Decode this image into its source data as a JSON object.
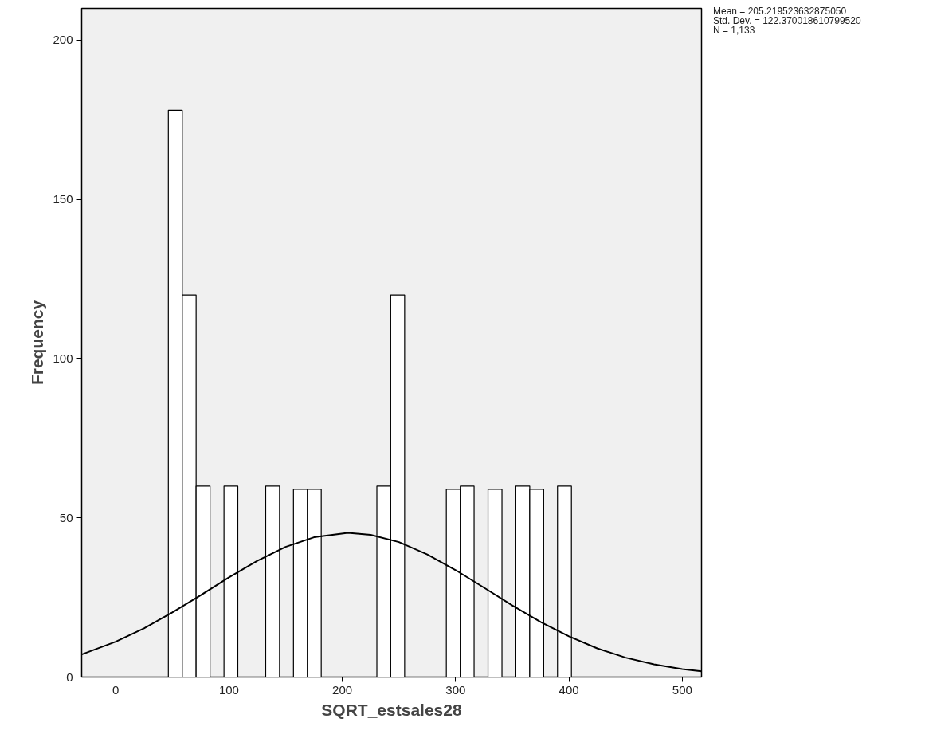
{
  "chart_data": {
    "type": "histogram",
    "xlabel": "SQRT_estsales28",
    "ylabel": "Frequency",
    "bins": [
      46.5,
      58.8,
      71.0,
      83.3,
      95.6,
      107.8,
      120.1,
      132.4,
      144.6,
      156.9,
      169.2,
      181.4,
      193.7,
      205.9,
      218.2,
      230.5,
      242.7,
      255.0,
      267.3,
      279.5,
      291.8,
      304.1,
      316.3,
      328.6,
      340.9,
      353.1,
      365.4,
      377.7,
      389.9,
      402.2
    ],
    "values": [
      178,
      120,
      60,
      0,
      60,
      0,
      0,
      60,
      0,
      59,
      59,
      0,
      0,
      0,
      0,
      60,
      120,
      0,
      0,
      0,
      59,
      60,
      0,
      59,
      0,
      60,
      59,
      0,
      60
    ],
    "color": "#ffffff",
    "series": [
      {
        "type": "line",
        "color": "#000000",
        "x": [
          -30,
          0,
          25,
          50,
          75,
          100,
          125,
          150,
          175,
          205,
          225,
          250,
          275,
          300,
          325,
          350,
          375,
          400,
          425,
          450,
          475,
          500,
          517
        ],
        "values": [
          7.1,
          11.1,
          15.3,
          20.3,
          25.7,
          31.3,
          36.5,
          40.9,
          43.9,
          45.3,
          44.7,
          42.4,
          38.5,
          33.6,
          28.1,
          22.5,
          17.3,
          12.8,
          9.0,
          6.1,
          4.0,
          2.5,
          1.8
        ]
      }
    ],
    "xlim": [
      -30,
      517
    ],
    "ylim": [
      0,
      210
    ],
    "xticks": [
      0,
      100,
      200,
      300,
      400,
      500
    ],
    "yticks": [
      0,
      50,
      100,
      150,
      200
    ],
    "grid": false,
    "annotations": [
      "Mean = 205.219523632875050",
      "Std. Dev. = 122.370018610799520",
      "N = 1,133"
    ]
  }
}
